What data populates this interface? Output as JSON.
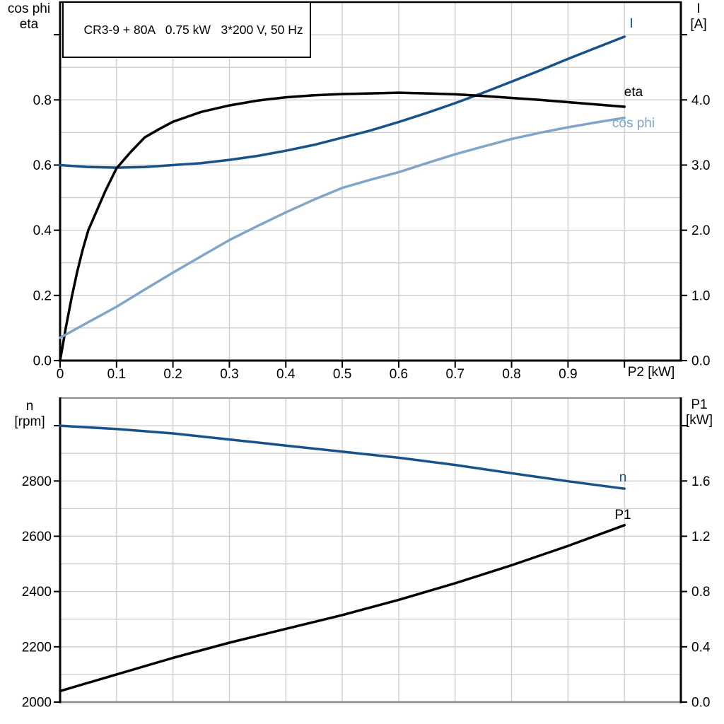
{
  "title": "CR3-9 + 80A   0.75 kW   3*200 V, 50 Hz",
  "colors": {
    "accent_dark_blue": "#175289",
    "accent_light_blue": "#7FA6C9",
    "curve_black": "#000000",
    "grid": "#cccccc",
    "axis_black": "#000000",
    "axis_gray": "#8a8a8a",
    "background": "#ffffff"
  },
  "chart_data": [
    {
      "type": "line",
      "title": "CR3-9 + 80A   0.75 kW   3*200 V, 50 Hz",
      "legend": "curve-end labels, no legend box",
      "grid": "on",
      "x": {
        "label": "P2 [kW]",
        "min": 0,
        "max": 1.1,
        "grid_step": 0.1,
        "ticks": [
          {
            "v": 0,
            "t": "0"
          },
          {
            "v": 0.1,
            "t": "0.1"
          },
          {
            "v": 0.2,
            "t": "0.2"
          },
          {
            "v": 0.3,
            "t": "0.3"
          },
          {
            "v": 0.4,
            "t": "0.4"
          },
          {
            "v": 0.5,
            "t": "0.5"
          },
          {
            "v": 0.6,
            "t": "0.6"
          },
          {
            "v": 0.7,
            "t": "0.7"
          },
          {
            "v": 0.8,
            "t": "0.8"
          },
          {
            "v": 0.9,
            "t": "0.9"
          },
          {
            "v": 1.0,
            "t": ""
          }
        ]
      },
      "y_left": {
        "title_line1": "cos phi",
        "title_line2": "eta",
        "min": 0,
        "max": 1.1,
        "grid_step": 0.1,
        "ticks": [
          {
            "v": 0,
            "t": "0.0"
          },
          {
            "v": 0.2,
            "t": "0.2"
          },
          {
            "v": 0.4,
            "t": "0.4"
          },
          {
            "v": 0.6,
            "t": "0.6"
          },
          {
            "v": 0.8,
            "t": "0.8"
          },
          {
            "v": 1.0,
            "t": ""
          }
        ]
      },
      "y_right": {
        "title_line1": "I",
        "title_line2": "[A]",
        "min": 0,
        "max": 5.5,
        "ticks": [
          {
            "v": 0,
            "t": "0.0"
          },
          {
            "v": 1,
            "t": "1.0"
          },
          {
            "v": 2,
            "t": "2.0"
          },
          {
            "v": 3,
            "t": "3.0"
          },
          {
            "v": 4,
            "t": "4.0"
          },
          {
            "v": 5,
            "t": ""
          }
        ]
      },
      "series": [
        {
          "name": "I",
          "label": "I",
          "axis": "right",
          "color": "#175289",
          "x": [
            0,
            0.05,
            0.1,
            0.15,
            0.2,
            0.25,
            0.3,
            0.35,
            0.4,
            0.45,
            0.5,
            0.55,
            0.6,
            0.65,
            0.7,
            0.75,
            0.8,
            0.85,
            0.9,
            0.95,
            1.0
          ],
          "y": [
            3.0,
            2.97,
            2.96,
            2.97,
            3.0,
            3.03,
            3.08,
            3.14,
            3.22,
            3.31,
            3.42,
            3.53,
            3.66,
            3.8,
            3.95,
            4.11,
            4.28,
            4.45,
            4.63,
            4.8,
            4.97
          ]
        },
        {
          "name": "eta",
          "label": "eta",
          "axis": "left",
          "color": "#000000",
          "x": [
            0,
            0.01,
            0.02,
            0.03,
            0.04,
            0.05,
            0.06,
            0.08,
            0.1,
            0.125,
            0.15,
            0.175,
            0.2,
            0.25,
            0.3,
            0.35,
            0.4,
            0.45,
            0.5,
            0.55,
            0.6,
            0.65,
            0.7,
            0.75,
            0.8,
            0.85,
            0.9,
            0.95,
            1.0
          ],
          "y": [
            0,
            0.1,
            0.19,
            0.27,
            0.34,
            0.4,
            0.44,
            0.52,
            0.59,
            0.64,
            0.685,
            0.71,
            0.733,
            0.763,
            0.783,
            0.798,
            0.808,
            0.814,
            0.818,
            0.82,
            0.822,
            0.82,
            0.817,
            0.812,
            0.806,
            0.8,
            0.793,
            0.786,
            0.779
          ]
        },
        {
          "name": "cos_phi",
          "label": "cos phi",
          "axis": "left",
          "color": "#7FA6C9",
          "x": [
            0,
            0.05,
            0.1,
            0.15,
            0.2,
            0.25,
            0.3,
            0.35,
            0.4,
            0.45,
            0.5,
            0.55,
            0.6,
            0.65,
            0.7,
            0.75,
            0.8,
            0.85,
            0.9,
            0.95,
            1.0
          ],
          "y": [
            0.07,
            0.118,
            0.165,
            0.218,
            0.27,
            0.32,
            0.37,
            0.413,
            0.455,
            0.494,
            0.53,
            0.555,
            0.578,
            0.606,
            0.633,
            0.657,
            0.68,
            0.699,
            0.716,
            0.731,
            0.745
          ]
        }
      ]
    },
    {
      "type": "line",
      "title": "",
      "legend": "curve-end labels, no legend box",
      "grid": "on",
      "x": {
        "label": "",
        "min": 0,
        "max": 1.1,
        "grid_step": 0.1,
        "ticks": []
      },
      "y_left": {
        "title_line1": "n",
        "title_line2": "[rpm]",
        "min": 2000,
        "max": 3100,
        "grid_step": 100,
        "ticks": [
          {
            "v": 2000,
            "t": "2000"
          },
          {
            "v": 2200,
            "t": "2200"
          },
          {
            "v": 2400,
            "t": "2400"
          },
          {
            "v": 2600,
            "t": "2600"
          },
          {
            "v": 2800,
            "t": "2800"
          },
          {
            "v": 3000,
            "t": ""
          }
        ]
      },
      "y_right": {
        "title_line1": "P1",
        "title_line2": "[kW]",
        "min": 0,
        "max": 2.2,
        "ticks": [
          {
            "v": 0,
            "t": "0.0"
          },
          {
            "v": 0.4,
            "t": "0.4"
          },
          {
            "v": 0.8,
            "t": "0.8"
          },
          {
            "v": 1.2,
            "t": "1.2"
          },
          {
            "v": 1.6,
            "t": "1.6"
          },
          {
            "v": 2.0,
            "t": ""
          }
        ]
      },
      "series": [
        {
          "name": "n",
          "label": "n",
          "axis": "left",
          "color": "#175289",
          "x": [
            0,
            0.1,
            0.2,
            0.3,
            0.4,
            0.5,
            0.6,
            0.7,
            0.8,
            0.9,
            1.0
          ],
          "y": [
            3000,
            2988,
            2972,
            2950,
            2928,
            2906,
            2884,
            2858,
            2828,
            2799,
            2772
          ]
        },
        {
          "name": "P1",
          "label": "P1",
          "axis": "right",
          "color": "#000000",
          "x": [
            0,
            0.1,
            0.2,
            0.3,
            0.4,
            0.5,
            0.6,
            0.7,
            0.8,
            0.9,
            1.0
          ],
          "y": [
            0.08,
            0.2,
            0.32,
            0.43,
            0.53,
            0.63,
            0.74,
            0.86,
            0.99,
            1.13,
            1.28
          ]
        }
      ]
    }
  ]
}
